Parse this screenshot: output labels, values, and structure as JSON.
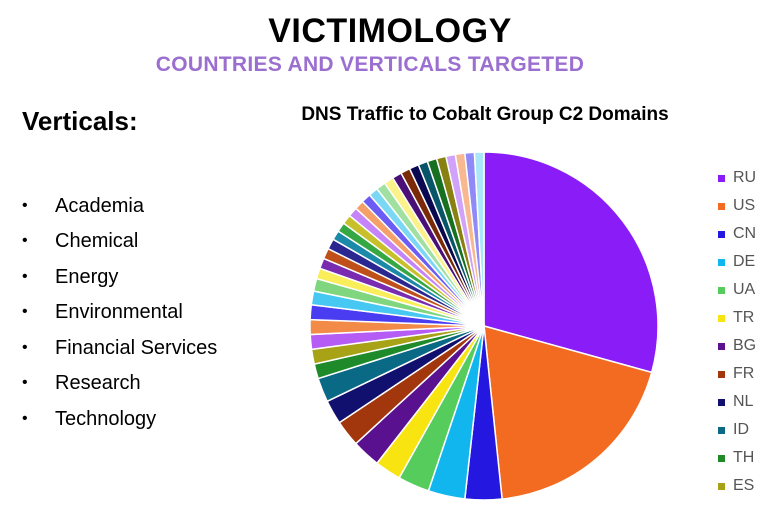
{
  "header": {
    "title": "VICTIMOLOGY",
    "subtitle": "COUNTRIES AND VERTICALS TARGETED"
  },
  "verticals": {
    "heading": "Verticals:",
    "items": [
      "Academia",
      "Chemical",
      "Energy",
      "Environmental",
      "Financial Services",
      "Research",
      "Technology"
    ],
    "bullet": "•"
  },
  "chart_data": {
    "type": "pie",
    "title": "DNS Traffic to Cobalt Group C2 Domains",
    "legend_placement": "right",
    "legend": [
      {
        "label": "RU",
        "color": "#8a1cf7"
      },
      {
        "label": "US",
        "color": "#f26b21"
      },
      {
        "label": "CN",
        "color": "#2418e0"
      },
      {
        "label": "DE",
        "color": "#12b6ef"
      },
      {
        "label": "UA",
        "color": "#55cc5c"
      },
      {
        "label": "TR",
        "color": "#f7e410"
      },
      {
        "label": "BG",
        "color": "#5a1190"
      },
      {
        "label": "FR",
        "color": "#a2360c"
      },
      {
        "label": "NL",
        "color": "#12106e"
      },
      {
        "label": "ID",
        "color": "#0a6a85"
      },
      {
        "label": "TH",
        "color": "#1f8a2a"
      },
      {
        "label": "ES",
        "color": "#a8a217"
      }
    ],
    "slices": [
      {
        "label": "RU",
        "value": 30.0,
        "color": "#8a1cf7"
      },
      {
        "label": "US",
        "value": 19.5,
        "color": "#f26b21"
      },
      {
        "label": "CN",
        "value": 3.5,
        "color": "#2418e0"
      },
      {
        "label": "DE",
        "value": 3.5,
        "color": "#12b6ef"
      },
      {
        "label": "UA",
        "value": 3.0,
        "color": "#55cc5c"
      },
      {
        "label": "TR",
        "value": 2.5,
        "color": "#f7e410"
      },
      {
        "label": "BG",
        "value": 2.7,
        "color": "#5a1190"
      },
      {
        "label": "FR",
        "value": 2.5,
        "color": "#a2360c"
      },
      {
        "label": "NL",
        "value": 2.3,
        "color": "#12106e"
      },
      {
        "label": "ID",
        "value": 2.3,
        "color": "#0a6a85"
      },
      {
        "label": "TH",
        "value": 1.4,
        "color": "#1f8a2a"
      },
      {
        "label": "ES",
        "value": 1.4,
        "color": "#a8a217"
      },
      {
        "label": "",
        "value": 1.4,
        "color": "#b45cf4"
      },
      {
        "label": "",
        "value": 1.4,
        "color": "#f28a48"
      },
      {
        "label": "",
        "value": 1.4,
        "color": "#4a3cf0"
      },
      {
        "label": "",
        "value": 1.3,
        "color": "#46c8f2"
      },
      {
        "label": "",
        "value": 1.2,
        "color": "#7fd67f"
      },
      {
        "label": "",
        "value": 1.0,
        "color": "#f9ee5a"
      },
      {
        "label": "",
        "value": 1.0,
        "color": "#7a2cb0"
      },
      {
        "label": "",
        "value": 1.0,
        "color": "#c0501a"
      },
      {
        "label": "",
        "value": 1.0,
        "color": "#2a2890"
      },
      {
        "label": "",
        "value": 0.9,
        "color": "#1a8aa8"
      },
      {
        "label": "",
        "value": 0.9,
        "color": "#36a843"
      },
      {
        "label": "",
        "value": 0.9,
        "color": "#c8c02a"
      },
      {
        "label": "",
        "value": 0.9,
        "color": "#c585f8"
      },
      {
        "label": "",
        "value": 0.9,
        "color": "#f5a06a"
      },
      {
        "label": "",
        "value": 0.9,
        "color": "#6a5cf5"
      },
      {
        "label": "",
        "value": 0.9,
        "color": "#7ad8f5"
      },
      {
        "label": "",
        "value": 0.9,
        "color": "#a0e0a0"
      },
      {
        "label": "",
        "value": 0.9,
        "color": "#fbf28a"
      },
      {
        "label": "",
        "value": 0.9,
        "color": "#4a1078"
      },
      {
        "label": "",
        "value": 0.9,
        "color": "#7a2a08"
      },
      {
        "label": "",
        "value": 0.9,
        "color": "#0a0850"
      },
      {
        "label": "",
        "value": 0.9,
        "color": "#085468"
      },
      {
        "label": "",
        "value": 0.9,
        "color": "#16701f"
      },
      {
        "label": "",
        "value": 0.9,
        "color": "#888010"
      },
      {
        "label": "",
        "value": 0.9,
        "color": "#d0a2fa"
      },
      {
        "label": "",
        "value": 0.9,
        "color": "#f8b890"
      },
      {
        "label": "",
        "value": 0.9,
        "color": "#908af8"
      },
      {
        "label": "",
        "value": 0.9,
        "color": "#a8e6f8"
      }
    ]
  }
}
